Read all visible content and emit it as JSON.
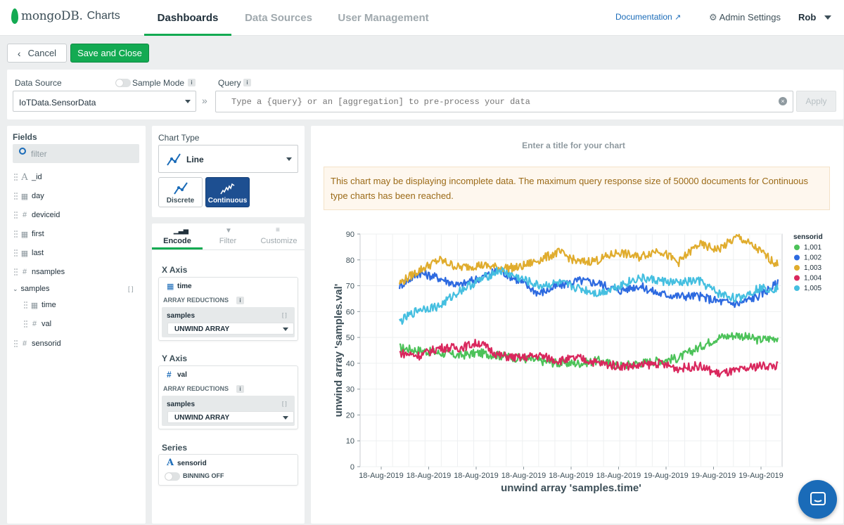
{
  "nav": {
    "logo_brand": "mongoDB.",
    "logo_product": "Charts",
    "tabs": [
      {
        "label": "Dashboards",
        "active": true
      },
      {
        "label": "Data Sources",
        "active": false
      },
      {
        "label": "User Management",
        "active": false
      }
    ],
    "documentation": "Documentation",
    "admin_settings": "Admin Settings",
    "user": "Rob"
  },
  "toolbar": {
    "cancel_label": "Cancel",
    "save_label": "Save and Close"
  },
  "datasource": {
    "label": "Data Source",
    "sample_mode_label": "Sample Mode",
    "value": "IoTData.SensorData",
    "query_label": "Query",
    "query_placeholder": "Type a {query} or an [aggregation] to pre-process your data",
    "apply_label": "Apply"
  },
  "fields": {
    "title": "Fields",
    "search_placeholder": "filter",
    "items": [
      {
        "name": "_id",
        "type": "A"
      },
      {
        "name": "day",
        "type": "date"
      },
      {
        "name": "deviceid",
        "type": "#"
      },
      {
        "name": "first",
        "type": "date"
      },
      {
        "name": "last",
        "type": "date"
      },
      {
        "name": "nsamples",
        "type": "#"
      },
      {
        "name": "samples",
        "type": "array"
      },
      {
        "name": "time",
        "type": "date"
      },
      {
        "name": "val",
        "type": "#"
      },
      {
        "name": "sensorid",
        "type": "#"
      }
    ]
  },
  "chart_type": {
    "label": "Chart Type",
    "selected": "Line",
    "discrete_label": "Discrete",
    "continuous_label": "Continuous"
  },
  "encode": {
    "tabs": [
      "Encode",
      "Filter",
      "Customize"
    ],
    "x_axis": {
      "title": "X Axis",
      "field": "time",
      "array_reductions": "ARRAY REDUCTIONS",
      "sub_field": "samples",
      "reduction": "UNWIND ARRAY"
    },
    "y_axis": {
      "title": "Y Axis",
      "field": "val",
      "array_reductions": "ARRAY REDUCTIONS",
      "sub_field": "samples",
      "reduction": "UNWIND ARRAY"
    },
    "series": {
      "title": "Series",
      "field": "sensorid",
      "binning": "BINNING OFF"
    }
  },
  "chart": {
    "title_placeholder": "Enter a title for your chart",
    "warning": "This chart may be displaying incomplete data. The maximum query response size of 50000 documents for Continuous type charts has been reached."
  },
  "chart_data": {
    "type": "line",
    "xlabel": "unwind array 'samples.time'",
    "ylabel": "unwind array 'samples.val'",
    "ylim": [
      0,
      90
    ],
    "y_ticks": [
      0,
      10,
      20,
      30,
      40,
      50,
      60,
      70,
      80,
      90
    ],
    "x_tick_labels": [
      "18-Aug-2019",
      "18-Aug-2019",
      "18-Aug-2019",
      "18-Aug-2019",
      "18-Aug-2019",
      "18-Aug-2019",
      "19-Aug-2019",
      "19-Aug-2019",
      "19-Aug-2019"
    ],
    "grid": true,
    "legend": {
      "title": "sensorid",
      "placement": "right"
    },
    "series": [
      {
        "name": "1,001",
        "color": "#4cc259",
        "values": [
          46,
          45,
          44,
          43,
          44,
          43,
          42,
          41,
          40,
          40,
          41,
          39,
          40,
          41,
          42,
          46,
          50,
          51,
          49,
          50
        ]
      },
      {
        "name": "1,002",
        "color": "#2d6ae0",
        "values": [
          70,
          75,
          73,
          70,
          73,
          76,
          72,
          67,
          70,
          72,
          71,
          68,
          70,
          67,
          66,
          66,
          64,
          63,
          66,
          71
        ]
      },
      {
        "name": "1,003",
        "color": "#e0ac2d",
        "values": [
          71,
          76,
          80,
          77,
          78,
          77,
          77,
          80,
          83,
          79,
          80,
          83,
          81,
          84,
          79,
          86,
          84,
          89,
          84,
          78
        ]
      },
      {
        "name": "1,004",
        "color": "#d9275d",
        "values": [
          44,
          43,
          46,
          46,
          48,
          43,
          42,
          43,
          41,
          42,
          40,
          39,
          39,
          40,
          38,
          39,
          36,
          37,
          39,
          39
        ]
      },
      {
        "name": "1,005",
        "color": "#45bfe0",
        "values": [
          56,
          61,
          62,
          68,
          72,
          76,
          73,
          70,
          71,
          69,
          67,
          70,
          73,
          72,
          71,
          72,
          67,
          65,
          69,
          69
        ]
      }
    ]
  }
}
